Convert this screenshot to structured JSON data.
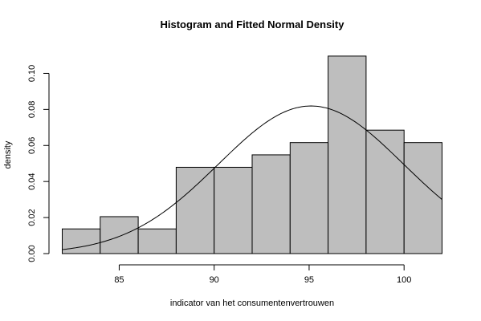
{
  "chart_data": {
    "type": "histogram",
    "title": "Histogram and Fitted Normal Density",
    "xlabel": "indicator van het consumentenvertrouwen",
    "ylabel": "density",
    "xlim": [
      82,
      102
    ],
    "ylim": [
      0,
      0.11
    ],
    "x_ticks": [
      85,
      90,
      95,
      100
    ],
    "x_tick_labels": [
      "85",
      "90",
      "95",
      "100"
    ],
    "y_ticks": [
      0.0,
      0.02,
      0.04,
      0.06,
      0.08,
      0.1
    ],
    "y_tick_labels": [
      "0.00",
      "0.02",
      "0.04",
      "0.06",
      "0.08",
      "0.10"
    ],
    "bins": [
      {
        "start": 82,
        "end": 84,
        "density": 0.0137
      },
      {
        "start": 84,
        "end": 86,
        "density": 0.0205
      },
      {
        "start": 86,
        "end": 88,
        "density": 0.0137
      },
      {
        "start": 88,
        "end": 90,
        "density": 0.0479
      },
      {
        "start": 90,
        "end": 92,
        "density": 0.0479
      },
      {
        "start": 92,
        "end": 94,
        "density": 0.0548
      },
      {
        "start": 94,
        "end": 96,
        "density": 0.0616
      },
      {
        "start": 96,
        "end": 98,
        "density": 0.1096
      },
      {
        "start": 98,
        "end": 100,
        "density": 0.0685
      },
      {
        "start": 100,
        "end": 102,
        "density": 0.0616
      }
    ],
    "bar_color": "#bebebe",
    "fitted_normal": {
      "mean": 95.1,
      "sd": 4.87
    },
    "grid": false
  }
}
